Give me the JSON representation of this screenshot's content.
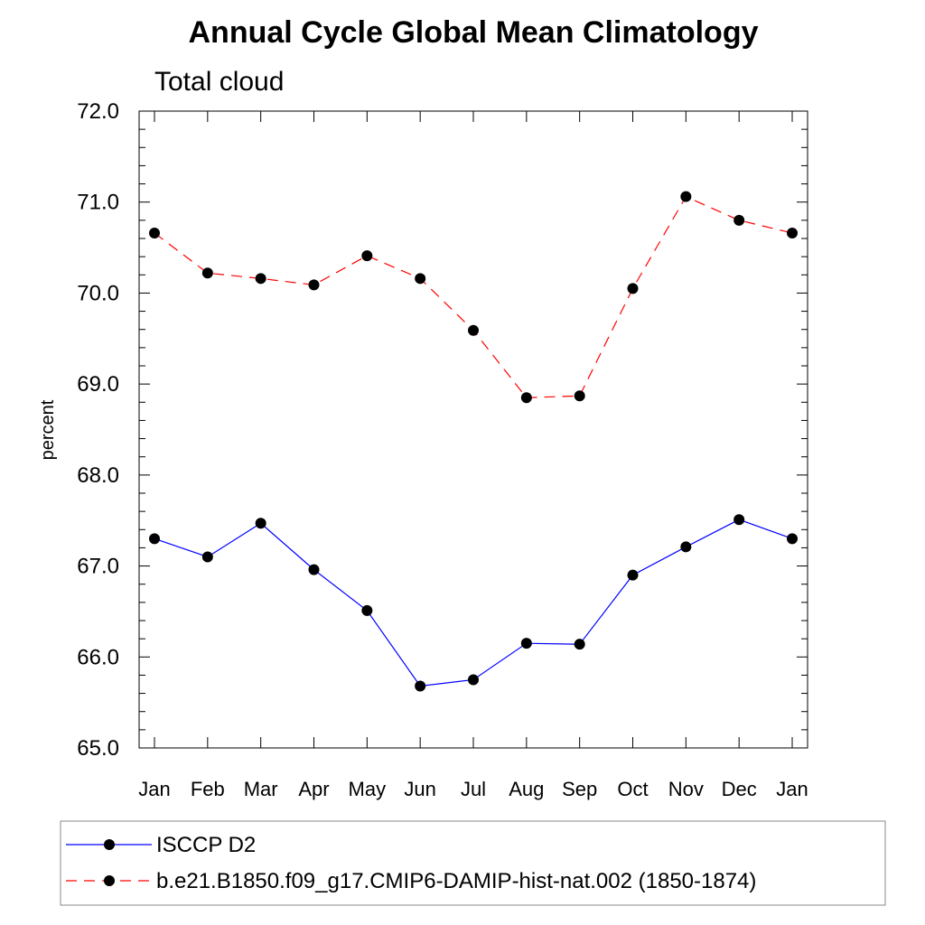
{
  "chart_data": {
    "type": "line",
    "title": "Annual Cycle Global Mean Climatology",
    "subtitle": "Total cloud",
    "xlabel": "",
    "ylabel": "percent",
    "categories": [
      "Jan",
      "Feb",
      "Mar",
      "Apr",
      "May",
      "Jun",
      "Jul",
      "Aug",
      "Sep",
      "Oct",
      "Nov",
      "Dec",
      "Jan"
    ],
    "ylim": [
      65.0,
      72.0
    ],
    "yticks": [
      "65.0",
      "66.0",
      "67.0",
      "68.0",
      "69.0",
      "70.0",
      "71.0",
      "72.0"
    ],
    "grid": false,
    "legend_position": "bottom",
    "series": [
      {
        "name": "ISCCP D2",
        "color": "#0000ff",
        "dash": "solid",
        "marker": "filled-circle",
        "values": [
          67.3,
          67.1,
          67.47,
          66.96,
          66.51,
          65.68,
          65.75,
          66.15,
          66.14,
          66.9,
          67.21,
          67.51,
          67.3
        ]
      },
      {
        "name": "b.e21.B1850.f09_g17.CMIP6-DAMIP-hist-nat.002 (1850-1874)",
        "color": "#ff0000",
        "dash": "dashed",
        "marker": "filled-circle",
        "values": [
          70.66,
          70.22,
          70.16,
          70.09,
          70.41,
          70.16,
          69.59,
          68.85,
          68.87,
          70.05,
          71.06,
          70.8,
          70.66
        ]
      }
    ]
  }
}
